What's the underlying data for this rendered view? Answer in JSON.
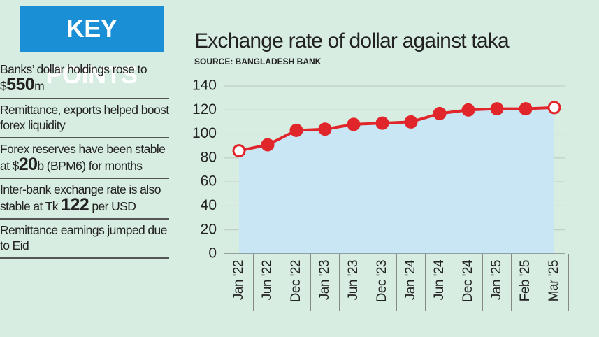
{
  "key_points": {
    "heading": "KEY POINTS",
    "items": [
      [
        "Banks’ dollar holdings rose to $",
        "550",
        "m"
      ],
      [
        "Remittance, exports helped boost forex liquidity"
      ],
      [
        "Forex reserves have been stable at $",
        "20",
        "b (BPM6) for months"
      ],
      [
        "Inter-bank exchange rate is also stable at Tk ",
        "122",
        " per USD"
      ],
      [
        "Remittance earnings jumped due to Eid"
      ]
    ]
  },
  "chart_data": {
    "type": "line",
    "title": "Exchange rate of dollar against taka",
    "subtitle": "SOURCE: BANGLADESH BANK",
    "categories": [
      "Jan '22",
      "Jun '22",
      "Dec '22",
      "Jan '23",
      "Jun '23",
      "Dec '23",
      "Jan '24",
      "Jun '24",
      "Dec '24",
      "Jan '25",
      "Feb '25",
      "Mar '25"
    ],
    "values": [
      86,
      91,
      103,
      104,
      108,
      109,
      110,
      117,
      120,
      121,
      121,
      122
    ],
    "color": "#e0262b",
    "area_color": "#c9e6f4",
    "ylim": [
      0,
      140
    ],
    "yticks": [
      0,
      20,
      40,
      60,
      80,
      100,
      120,
      140
    ],
    "grid": true
  }
}
